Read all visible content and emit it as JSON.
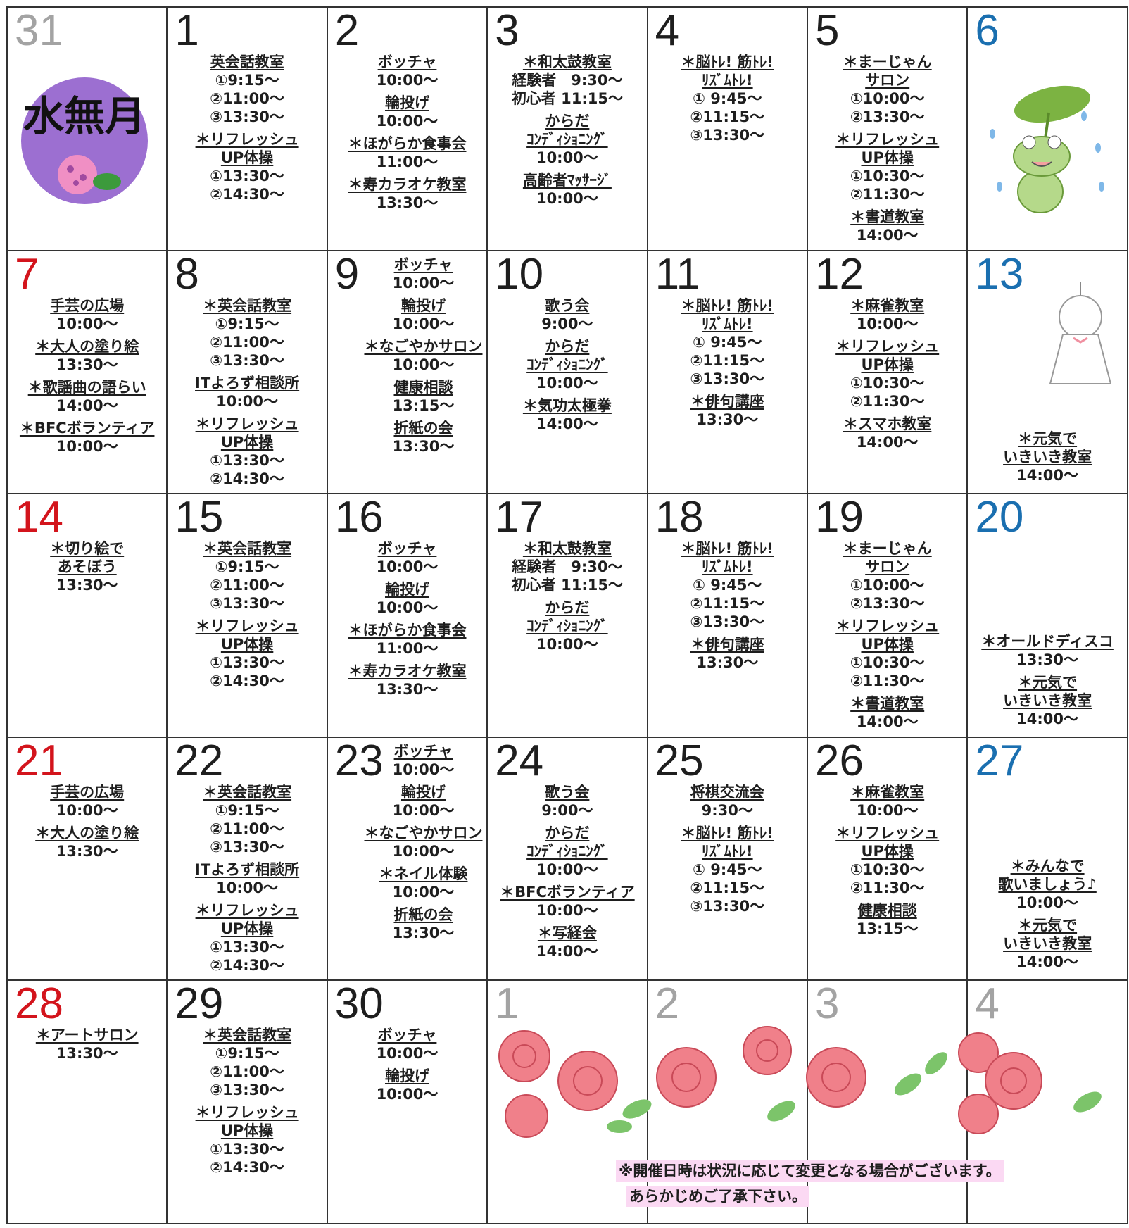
{
  "cells": [
    {
      "day": 31,
      "color": "#a3a3a3",
      "label": "水無月",
      "events": []
    },
    {
      "day": 1,
      "color": "#1e1e1e",
      "events": [
        {
          "title": [
            "英会話教室"
          ],
          "times": [
            "①9:15～",
            "②11:00～",
            "③13:30～"
          ]
        },
        {
          "title": [
            "＊リフレッシュ",
            "UP体操"
          ],
          "times": [
            "①13:30～",
            "②14:30～"
          ]
        }
      ]
    },
    {
      "day": 2,
      "color": "#1e1e1e",
      "events": [
        {
          "title": [
            "ボッチャ"
          ],
          "times": [
            "10:00～"
          ]
        },
        {
          "title": [
            "輪投げ"
          ],
          "times": [
            "10:00～"
          ]
        },
        {
          "title": [
            "＊ほがらか食事会"
          ],
          "times": [
            "11:00～"
          ]
        },
        {
          "title": [
            "＊寿カラオケ教室"
          ],
          "times": [
            "13:30～"
          ]
        }
      ]
    },
    {
      "day": 3,
      "color": "#1e1e1e",
      "events": [
        {
          "title": [
            "＊和太鼓教室"
          ],
          "times": [
            "経験者　9:30～",
            "初心者 11:15～"
          ]
        },
        {
          "title": [
            "からだ",
            "ｺﾝﾃﾞｨｼｮﾆﾝｸﾞ"
          ],
          "times": [
            "10:00～"
          ]
        },
        {
          "title": [
            "高齢者ﾏｯｻｰｼﾞ"
          ],
          "times": [
            "10:00～"
          ]
        }
      ]
    },
    {
      "day": 4,
      "color": "#1e1e1e",
      "events": [
        {
          "title": [
            "＊脳ﾄﾚ! 筋ﾄﾚ!",
            "ﾘｽﾞﾑﾄﾚ!"
          ],
          "times": [
            "① 9:45～",
            "②11:15～",
            "③13:30～"
          ]
        }
      ]
    },
    {
      "day": 5,
      "color": "#1e1e1e",
      "events": [
        {
          "title": [
            "＊まーじゃん",
            "サロン"
          ],
          "times": [
            "①10:00～",
            "②13:30～"
          ]
        },
        {
          "title": [
            "＊リフレッシュ",
            "UP体操"
          ],
          "times": [
            "①10:30～",
            "②11:30～"
          ]
        },
        {
          "title": [
            "＊書道教室"
          ],
          "times": [
            "14:00～"
          ]
        }
      ]
    },
    {
      "day": 6,
      "color": "#1a6fb0",
      "events": []
    },
    {
      "day": 7,
      "color": "#d3141c",
      "events": [
        {
          "title": [
            "手芸の広場"
          ],
          "times": [
            "10:00～"
          ]
        },
        {
          "title": [
            "＊大人の塗り絵"
          ],
          "times": [
            "13:30～"
          ]
        },
        {
          "title": [
            "＊歌謡曲の語らい"
          ],
          "times": [
            "14:00～"
          ]
        },
        {
          "title": [
            "＊BFCボランティア"
          ],
          "times": [
            "10:00～"
          ]
        }
      ]
    },
    {
      "day": 8,
      "color": "#1e1e1e",
      "events": [
        {
          "title": [
            "＊英会話教室"
          ],
          "times": [
            "①9:15～",
            "②11:00～",
            "③13:30～"
          ]
        },
        {
          "title": [
            "ITよろず相談所"
          ],
          "times": [
            "10:00～"
          ]
        },
        {
          "title": [
            "＊リフレッシュ",
            "UP体操"
          ],
          "times": [
            "①13:30～",
            "②14:30～"
          ]
        }
      ]
    },
    {
      "day": 9,
      "color": "#1e1e1e",
      "events": [
        {
          "title": [
            "ボッチャ"
          ],
          "times": [
            "10:00～"
          ]
        },
        {
          "title": [
            "輪投げ"
          ],
          "times": [
            "10:00～"
          ]
        },
        {
          "title": [
            "＊なごやかサロン"
          ],
          "times": [
            "10:00～"
          ]
        },
        {
          "title": [
            "健康相談"
          ],
          "times": [
            "13:15～"
          ]
        },
        {
          "title": [
            "折紙の会"
          ],
          "times": [
            "13:30～"
          ]
        }
      ]
    },
    {
      "day": 10,
      "color": "#1e1e1e",
      "events": [
        {
          "title": [
            "歌う会"
          ],
          "times": [
            "9:00～"
          ]
        },
        {
          "title": [
            "からだ",
            "ｺﾝﾃﾞｨｼｮﾆﾝｸﾞ"
          ],
          "times": [
            "10:00～"
          ]
        },
        {
          "title": [
            "＊気功太極拳"
          ],
          "times": [
            "14:00～"
          ]
        }
      ]
    },
    {
      "day": 11,
      "color": "#1e1e1e",
      "events": [
        {
          "title": [
            "＊脳ﾄﾚ! 筋ﾄﾚ!",
            "ﾘｽﾞﾑﾄﾚ!"
          ],
          "times": [
            "① 9:45～",
            "②11:15～",
            "③13:30～"
          ]
        },
        {
          "title": [
            "＊俳句講座"
          ],
          "times": [
            "13:30～"
          ]
        }
      ]
    },
    {
      "day": 12,
      "color": "#1e1e1e",
      "events": [
        {
          "title": [
            "＊麻雀教室"
          ],
          "times": [
            "10:00～"
          ]
        },
        {
          "title": [
            "＊リフレッシュ",
            "UP体操"
          ],
          "times": [
            "①10:30～",
            "②11:30～"
          ]
        },
        {
          "title": [
            "＊スマホ教室"
          ],
          "times": [
            "14:00～"
          ]
        }
      ]
    },
    {
      "day": 13,
      "color": "#1a6fb0",
      "events": [
        {
          "title": [
            "＊元気で",
            "いきいき教室"
          ],
          "times": [
            "14:00～"
          ]
        }
      ]
    },
    {
      "day": 14,
      "color": "#d3141c",
      "events": [
        {
          "title": [
            "＊切り絵で",
            "あそぼう"
          ],
          "times": [
            "13:30～"
          ]
        }
      ]
    },
    {
      "day": 15,
      "color": "#1e1e1e",
      "events": [
        {
          "title": [
            "＊英会話教室"
          ],
          "times": [
            "①9:15～",
            "②11:00～",
            "③13:30～"
          ]
        },
        {
          "title": [
            "＊リフレッシュ",
            "UP体操"
          ],
          "times": [
            "①13:30～",
            "②14:30～"
          ]
        }
      ]
    },
    {
      "day": 16,
      "color": "#1e1e1e",
      "events": [
        {
          "title": [
            "ボッチャ"
          ],
          "times": [
            "10:00～"
          ]
        },
        {
          "title": [
            "輪投げ"
          ],
          "times": [
            "10:00～"
          ]
        },
        {
          "title": [
            "＊ほがらか食事会"
          ],
          "times": [
            "11:00～"
          ]
        },
        {
          "title": [
            "＊寿カラオケ教室"
          ],
          "times": [
            "13:30～"
          ]
        }
      ]
    },
    {
      "day": 17,
      "color": "#1e1e1e",
      "events": [
        {
          "title": [
            "＊和太鼓教室"
          ],
          "times": [
            "経験者　9:30～",
            "初心者 11:15～"
          ]
        },
        {
          "title": [
            "からだ",
            "ｺﾝﾃﾞｨｼｮﾆﾝｸﾞ"
          ],
          "times": [
            "10:00～"
          ]
        }
      ]
    },
    {
      "day": 18,
      "color": "#1e1e1e",
      "events": [
        {
          "title": [
            "＊脳ﾄﾚ! 筋ﾄﾚ!",
            "ﾘｽﾞﾑﾄﾚ!"
          ],
          "times": [
            "① 9:45～",
            "②11:15～",
            "③13:30～"
          ]
        },
        {
          "title": [
            "＊俳句講座"
          ],
          "times": [
            "13:30～"
          ]
        }
      ]
    },
    {
      "day": 19,
      "color": "#1e1e1e",
      "events": [
        {
          "title": [
            "＊まーじゃん",
            "サロン"
          ],
          "times": [
            "①10:00～",
            "②13:30～"
          ]
        },
        {
          "title": [
            "＊リフレッシュ",
            "UP体操"
          ],
          "times": [
            "①10:30～",
            "②11:30～"
          ]
        },
        {
          "title": [
            "＊書道教室"
          ],
          "times": [
            "14:00～"
          ]
        }
      ]
    },
    {
      "day": 20,
      "color": "#1a6fb0",
      "events": [
        {
          "title": [
            "＊オールドディスコ"
          ],
          "times": [
            "13:30～"
          ]
        },
        {
          "title": [
            "＊元気で",
            "いきいき教室"
          ],
          "times": [
            "14:00～"
          ]
        }
      ]
    },
    {
      "day": 21,
      "color": "#d3141c",
      "events": [
        {
          "title": [
            "手芸の広場"
          ],
          "times": [
            "10:00～"
          ]
        },
        {
          "title": [
            "＊大人の塗り絵"
          ],
          "times": [
            "13:30～"
          ]
        }
      ]
    },
    {
      "day": 22,
      "color": "#1e1e1e",
      "events": [
        {
          "title": [
            "＊英会話教室"
          ],
          "times": [
            "①9:15～",
            "②11:00～",
            "③13:30～"
          ]
        },
        {
          "title": [
            "ITよろず相談所"
          ],
          "times": [
            "10:00～"
          ]
        },
        {
          "title": [
            "＊リフレッシュ",
            "UP体操"
          ],
          "times": [
            "①13:30～",
            "②14:30～"
          ]
        }
      ]
    },
    {
      "day": 23,
      "color": "#1e1e1e",
      "events": [
        {
          "title": [
            "ボッチャ"
          ],
          "times": [
            "10:00～"
          ]
        },
        {
          "title": [
            "輪投げ"
          ],
          "times": [
            "10:00～"
          ]
        },
        {
          "title": [
            "＊なごやかサロン"
          ],
          "times": [
            "10:00～"
          ]
        },
        {
          "title": [
            "＊ネイル体験"
          ],
          "times": [
            "10:00～"
          ]
        },
        {
          "title": [
            "折紙の会"
          ],
          "times": [
            "13:30～"
          ]
        }
      ]
    },
    {
      "day": 24,
      "color": "#1e1e1e",
      "events": [
        {
          "title": [
            "歌う会"
          ],
          "times": [
            "9:00～"
          ]
        },
        {
          "title": [
            "からだ",
            "ｺﾝﾃﾞｨｼｮﾆﾝｸﾞ"
          ],
          "times": [
            "10:00～"
          ]
        },
        {
          "title": [
            "＊BFCボランティア"
          ],
          "times": [
            "10:00～"
          ]
        },
        {
          "title": [
            "＊写経会"
          ],
          "times": [
            "14:00～"
          ]
        }
      ]
    },
    {
      "day": 25,
      "color": "#1e1e1e",
      "events": [
        {
          "title": [
            "将棋交流会"
          ],
          "times": [
            "9:30～"
          ]
        },
        {
          "title": [
            "＊脳ﾄﾚ! 筋ﾄﾚ!",
            "ﾘｽﾞﾑﾄﾚ!"
          ],
          "times": [
            "① 9:45～",
            "②11:15～",
            "③13:30～"
          ]
        }
      ]
    },
    {
      "day": 26,
      "color": "#1e1e1e",
      "events": [
        {
          "title": [
            "＊麻雀教室"
          ],
          "times": [
            "10:00～"
          ]
        },
        {
          "title": [
            "＊リフレッシュ",
            "UP体操"
          ],
          "times": [
            "①10:30～",
            "②11:30～"
          ]
        },
        {
          "title": [
            "健康相談"
          ],
          "times": [
            "13:15～"
          ]
        }
      ]
    },
    {
      "day": 27,
      "color": "#1a6fb0",
      "events": [
        {
          "title": [
            "＊みんなで",
            "歌いましょう♪"
          ],
          "times": [
            "10:00～"
          ]
        },
        {
          "title": [
            "＊元気で",
            "いきいき教室"
          ],
          "times": [
            "14:00～"
          ]
        }
      ]
    },
    {
      "day": 28,
      "color": "#d3141c",
      "events": [
        {
          "title": [
            "＊アートサロン"
          ],
          "times": [
            "13:30～"
          ]
        }
      ]
    },
    {
      "day": 29,
      "color": "#1e1e1e",
      "events": [
        {
          "title": [
            "＊英会話教室"
          ],
          "times": [
            "①9:15～",
            "②11:00～",
            "③13:30～"
          ]
        },
        {
          "title": [
            "＊リフレッシュ",
            "UP体操"
          ],
          "times": [
            "①13:30～",
            "②14:30～"
          ]
        }
      ]
    },
    {
      "day": 30,
      "color": "#1e1e1e",
      "events": [
        {
          "title": [
            "ボッチャ"
          ],
          "times": [
            "10:00～"
          ]
        },
        {
          "title": [
            "輪投げ"
          ],
          "times": [
            "10:00～"
          ]
        }
      ]
    },
    {
      "day": 1,
      "color": "#a3a3a3",
      "events": []
    },
    {
      "day": 2,
      "color": "#a3a3a3",
      "events": []
    },
    {
      "day": 3,
      "color": "#a3a3a3",
      "events": []
    },
    {
      "day": 4,
      "color": "#a3a3a3",
      "events": []
    }
  ],
  "note": [
    "※開催日時は状況に応じて変更となる場合がございます。",
    "あらかじめご了承下さい。"
  ]
}
